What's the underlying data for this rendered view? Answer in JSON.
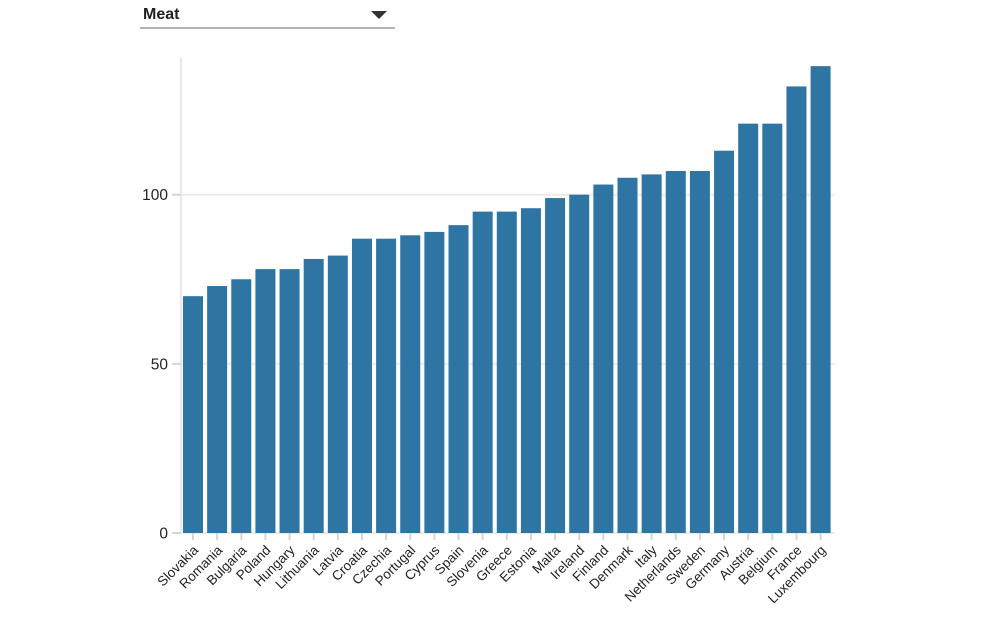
{
  "dropdown": {
    "label": "Meat",
    "icon": "caret-down-icon"
  },
  "colors": {
    "bar": "#2e75a3",
    "axis_line": "#ebebeb",
    "grid_line": "#ebebeb",
    "tick_mark": "#d6d6d6",
    "tick_text": "#222222",
    "dropdown_underline": "#b3b3b3",
    "dropdown_text": "#222222",
    "background": "#ffffff"
  },
  "chart_data": {
    "type": "bar",
    "title": "",
    "xlabel": "",
    "ylabel": "",
    "categories": [
      "Slovakia",
      "Romania",
      "Bulgaria",
      "Poland",
      "Hungary",
      "Lithuania",
      "Latvia",
      "Croatia",
      "Czechia",
      "Portugal",
      "Cyprus",
      "Spain",
      "Slovenia",
      "Greece",
      "Estonia",
      "Malta",
      "Ireland",
      "Finland",
      "Denmark",
      "Italy",
      "Netherlands",
      "Sweden",
      "Germany",
      "Austria",
      "Belgium",
      "France",
      "Luxembourg"
    ],
    "values": [
      70,
      73,
      75,
      78,
      78,
      81,
      82,
      87,
      87,
      88,
      89,
      91,
      95,
      95,
      96,
      99,
      100,
      103,
      105,
      106,
      107,
      107,
      113,
      121,
      121,
      132,
      138
    ],
    "yticks": [
      0,
      50,
      100
    ],
    "ylim": [
      0,
      140.7
    ],
    "grid": true,
    "gridlines_at": [
      0,
      50,
      100
    ],
    "legend": "none",
    "x_tick_label_rotation_deg": -45
  }
}
